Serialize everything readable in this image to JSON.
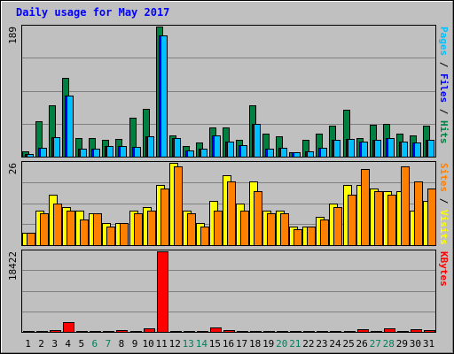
{
  "chart_data": {
    "title": "Daily usage for May 2017",
    "type": "bar",
    "days": [
      "1",
      "2",
      "3",
      "4",
      "5",
      "6",
      "7",
      "8",
      "9",
      "10",
      "11",
      "12",
      "13",
      "14",
      "15",
      "16",
      "17",
      "18",
      "19",
      "20",
      "21",
      "22",
      "23",
      "24",
      "25",
      "26",
      "27",
      "28",
      "29",
      "30",
      "31"
    ],
    "weekend_days": [
      "6",
      "7",
      "13",
      "14",
      "20",
      "21",
      "27",
      "28"
    ],
    "panels": [
      {
        "id": "hits-files-pages",
        "max_label": "189",
        "ymax": 189,
        "series": [
          {
            "name": "Pages",
            "color": "#00c0ff",
            "values": [
              4,
              13,
              28,
              89,
              11,
              11,
              16,
              16,
              14,
              29,
              176,
              27,
              9,
              11,
              31,
              22,
              17,
              48,
              12,
              13,
              6,
              8,
              13,
              25,
              26,
              22,
              25,
              27,
              22,
              21,
              24
            ]
          },
          {
            "name": "Files",
            "color": "#0000ff",
            "values": [
              4,
              13,
              28,
              89,
              11,
              11,
              16,
              16,
              14,
              29,
              176,
              27,
              9,
              11,
              31,
              22,
              17,
              48,
              12,
              13,
              6,
              8,
              13,
              25,
              26,
              22,
              25,
              27,
              22,
              21,
              24
            ]
          },
          {
            "name": "Hits",
            "color": "#008040",
            "values": [
              8,
              51,
              75,
              114,
              27,
              27,
              24,
              26,
              57,
              70,
              189,
              31,
              16,
              20,
              42,
              42,
              25,
              75,
              33,
              30,
              7,
              24,
              33,
              45,
              68,
              27,
              46,
              47,
              34,
              31,
              45
            ]
          }
        ],
        "right_label_parts": [
          {
            "text": "Pages",
            "color": "#00c0ff"
          },
          {
            "text": " / ",
            "color": "#000000"
          },
          {
            "text": "Files",
            "color": "#0000ff"
          },
          {
            "text": " / ",
            "color": "#000000"
          },
          {
            "text": "Hits",
            "color": "#008040"
          }
        ]
      },
      {
        "id": "visits-sites",
        "max_label": "26",
        "ymax": 26,
        "series": [
          {
            "name": "Visits",
            "color": "#ffff00",
            "values": [
              4,
              11,
              16,
              12,
              11,
              10,
              7,
              7,
              11,
              12,
              19,
              26,
              11,
              7,
              14,
              22,
              13,
              20,
              11,
              11,
              6,
              6,
              9,
              13,
              19,
              19,
              18,
              17,
              17,
              11,
              14
            ]
          },
          {
            "name": "Sites",
            "color": "#ff8000",
            "values": [
              4,
              10,
              13,
              11,
              8,
              10,
              6,
              7,
              10,
              11,
              18,
              25,
              10,
              6,
              11,
              20,
              11,
              17,
              10,
              10,
              5,
              6,
              8,
              12,
              16,
              24,
              17,
              16,
              25,
              20,
              18
            ]
          }
        ],
        "right_label_parts": [
          {
            "text": "Sites",
            "color": "#ff8000"
          },
          {
            "text": " / ",
            "color": "#000000"
          },
          {
            "text": "Visits",
            "color": "#ffff00"
          }
        ]
      },
      {
        "id": "kbytes",
        "max_label": "18422",
        "ymax": 18422,
        "series": [
          {
            "name": "KBytes",
            "color": "#ff0000",
            "values": [
              200,
              300,
              500,
              2300,
              150,
              150,
              150,
              400,
              300,
              800,
              18422,
              200,
              300,
              300,
              1000,
              400,
              250,
              200,
              300,
              250,
              200,
              200,
              250,
              200,
              300,
              700,
              300,
              900,
              300,
              600,
              500
            ]
          }
        ],
        "right_label_parts": [
          {
            "text": "KBytes",
            "color": "#ff0000"
          }
        ]
      }
    ],
    "colors": {
      "background": "#c0c0c0",
      "title": "#0000ff",
      "weekday": "#000000",
      "weekend": "#00805c",
      "gridline": "#808080"
    }
  }
}
